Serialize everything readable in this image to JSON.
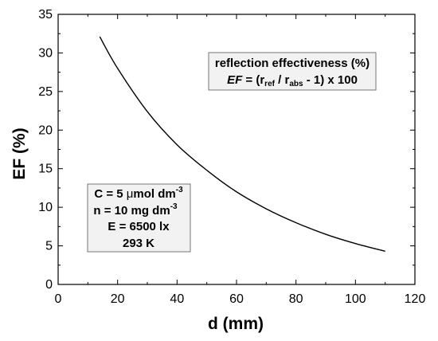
{
  "chart_data": {
    "type": "line",
    "xlabel": "d (mm)",
    "ylabel": "EF (%)",
    "xlim": [
      0,
      120
    ],
    "ylim": [
      0,
      35
    ],
    "x_ticks": [
      "0",
      "20",
      "40",
      "60",
      "80",
      "100",
      "120"
    ],
    "y_ticks": [
      "0",
      "5",
      "10",
      "15",
      "20",
      "25",
      "30",
      "35"
    ],
    "grid": false,
    "legend": "none",
    "series": [
      {
        "x": [
          14,
          20,
          30,
          40,
          50,
          60,
          70,
          80,
          90,
          100,
          110
        ],
        "y": [
          32.1,
          28.0,
          22.4,
          18.1,
          14.8,
          12.0,
          9.8,
          8.0,
          6.5,
          5.3,
          4.3
        ],
        "color": "#000000"
      }
    ],
    "annotations": {
      "formula_box": {
        "line1": "reflection effectiveness (%)",
        "line2": {
          "ef": "EF",
          "eq_open": " = (r",
          "sub_ref": "ref",
          "slash": " / r",
          "sub_abs": "abs",
          "tail": " - 1) x 100"
        }
      },
      "conditions_box": {
        "c_prefix": "C = 5 ",
        "c_mu": "μ",
        "c_unit": "mol dm",
        "c_exp": "-3",
        "n_text": "n = 10 mg dm",
        "n_exp": "-3",
        "e_text": "E = 6500 lx",
        "t_text": "293 K"
      }
    }
  }
}
